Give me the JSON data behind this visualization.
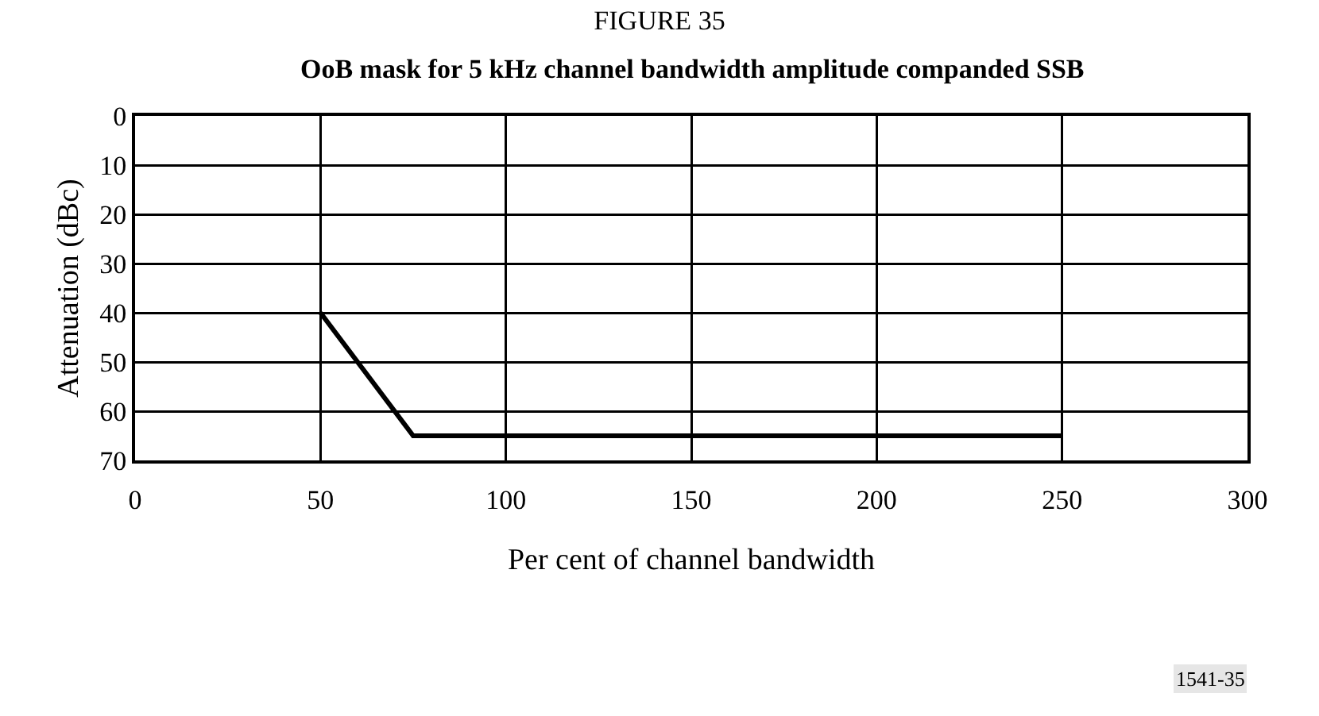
{
  "chart_data": {
    "type": "line",
    "title": "FIGURE 35",
    "subtitle": "OoB mask for 5 kHz channel bandwidth amplitude companded SSB",
    "xlabel": "Per cent of channel bandwidth",
    "ylabel": "Attenuation (dBc)",
    "annotations": [
      "1541-35"
    ],
    "x": [
      50,
      75,
      250
    ],
    "series": [
      {
        "color": "#000000",
        "values": [
          40,
          65,
          65
        ]
      }
    ],
    "xlim": [
      0,
      300
    ],
    "xticks": [
      0,
      50,
      100,
      150,
      200,
      250,
      300
    ],
    "ylim": [
      70,
      0
    ],
    "yticks": [
      0,
      10,
      20,
      30,
      40,
      50,
      60,
      70
    ],
    "grid": true,
    "marker": "none",
    "line_style": "solid"
  }
}
